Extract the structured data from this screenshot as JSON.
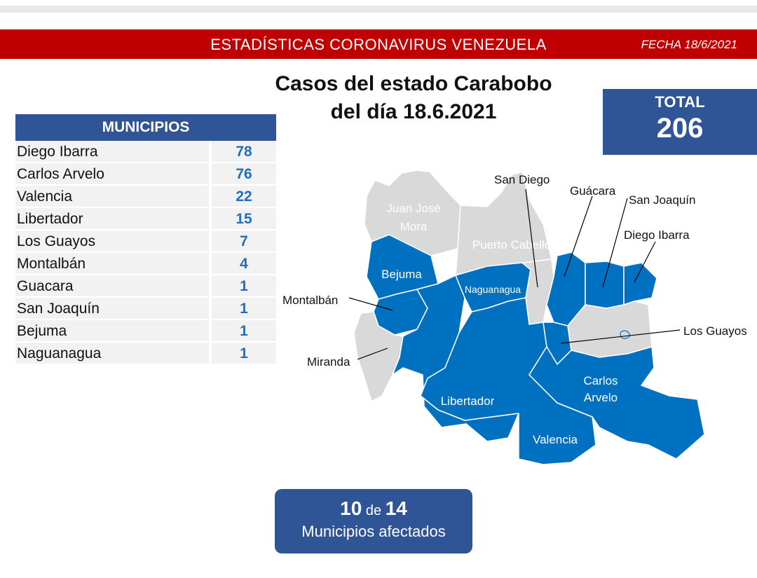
{
  "banner": {
    "title": "ESTADÍSTICAS CORONAVIRUS VENEZUELA",
    "date": "FECHA 18/6/2021"
  },
  "heading": {
    "line1": "Casos del estado Carabobo",
    "line2": "del día 18.6.2021"
  },
  "total": {
    "label": "TOTAL",
    "value": "206"
  },
  "table": {
    "header": "MUNICIPIOS",
    "rows": [
      {
        "name": "Diego Ibarra",
        "value": "78"
      },
      {
        "name": "Carlos Arvelo",
        "value": "76"
      },
      {
        "name": "Valencia",
        "value": "22"
      },
      {
        "name": "Libertador",
        "value": "15"
      },
      {
        "name": "Los Guayos",
        "value": "7"
      },
      {
        "name": "Montalbán",
        "value": "4"
      },
      {
        "name": "Guacara",
        "value": "1"
      },
      {
        "name": "San Joaquín",
        "value": "1"
      },
      {
        "name": "Bejuma",
        "value": "1"
      },
      {
        "name": "Naguanagua",
        "value": "1"
      }
    ]
  },
  "map": {
    "colors": {
      "affected": "#0070c0",
      "unaffected": "#d9d9d9"
    },
    "labels": {
      "juan_jose_mora_1": "Juan José",
      "juan_jose_mora_2": "Mora",
      "puerto_cabello": "Puerto Cabello",
      "bejuma": "Bejuma",
      "naguanagua": "Naguanagua",
      "libertador": "Libertador",
      "valencia": "Valencia",
      "carlos_arvelo_1": "Carlos",
      "carlos_arvelo_2": "Arvelo"
    },
    "callouts": {
      "san_diego": "San Diego",
      "guacara": "Guácara",
      "san_joaquin": "San Joaquín",
      "diego_ibarra": "Diego Ibarra",
      "montalban": "Montalbán",
      "miranda": "Miranda",
      "los_guayos": "Los Guayos"
    }
  },
  "affected": {
    "count": "10",
    "of": "de",
    "total": "14",
    "label": "Municipios afectados"
  }
}
